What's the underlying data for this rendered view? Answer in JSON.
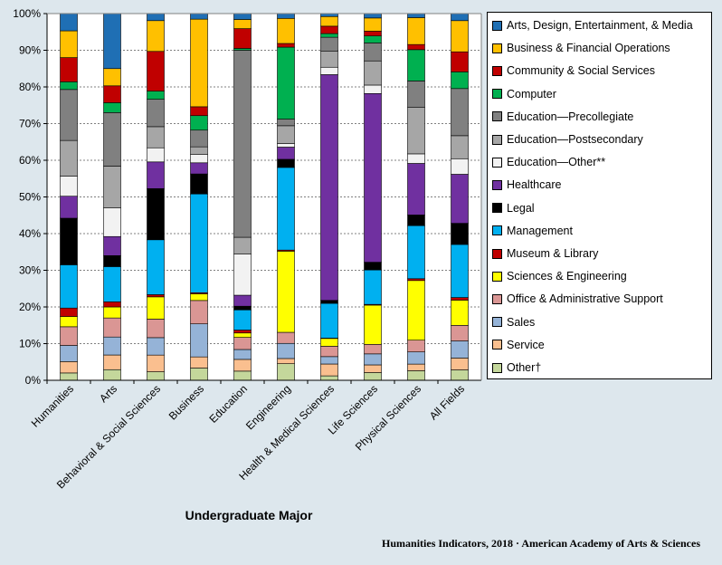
{
  "chart_data": {
    "type": "bar",
    "stacked": true,
    "percent_stacked": true,
    "xlabel": "Undergraduate Major",
    "ylabel": "",
    "ylim": [
      0,
      100
    ],
    "yticks": [
      "0%",
      "10%",
      "20%",
      "30%",
      "40%",
      "50%",
      "60%",
      "70%",
      "80%",
      "90%",
      "100%"
    ],
    "legend_position": "right",
    "categories": [
      "Humanities",
      "Arts",
      "Behavioral & Social Sciences",
      "Business",
      "Education",
      "Engineering",
      "Health & Medical Sciences",
      "Life Sciences",
      "Physical Sciences",
      "All Fields"
    ],
    "series": [
      {
        "name": "Other†",
        "color": "#c4d79b",
        "values": [
          2.0,
          2.9,
          2.3,
          3.3,
          2.5,
          4.5,
          1.2,
          2.1,
          2.6,
          2.8
        ]
      },
      {
        "name": "Service",
        "color": "#fabf8f",
        "values": [
          3.1,
          4.0,
          4.5,
          3.0,
          3.2,
          1.4,
          3.2,
          2.1,
          1.8,
          3.2
        ]
      },
      {
        "name": "Sales",
        "color": "#95b3d7",
        "values": [
          4.4,
          4.9,
          4.7,
          8.9,
          2.7,
          4.1,
          2.0,
          3.0,
          3.3,
          4.6
        ]
      },
      {
        "name": "Office & Administrative Support",
        "color": "#da9694",
        "values": [
          5.1,
          5.2,
          5.0,
          6.3,
          3.3,
          3.0,
          2.8,
          2.6,
          3.2,
          4.2
        ]
      },
      {
        "name": "Sciences & Engineering",
        "color": "#ffff00",
        "values": [
          2.8,
          3.0,
          6.0,
          1.8,
          1.2,
          22.0,
          2.1,
          10.7,
          16.2,
          6.8
        ]
      },
      {
        "name": "Museum & Library",
        "color": "#c00000",
        "values": [
          2.3,
          1.4,
          0.6,
          0.3,
          0.8,
          0.3,
          0.1,
          0.2,
          0.5,
          0.7
        ]
      },
      {
        "name": "Management",
        "color": "#00b0f0",
        "values": [
          11.8,
          9.6,
          14.8,
          26.6,
          5.5,
          22.4,
          9.4,
          9.4,
          14.4,
          14.3
        ]
      },
      {
        "name": "Legal",
        "color": "#000000",
        "values": [
          12.7,
          3.0,
          13.8,
          5.4,
          1.0,
          2.2,
          0.8,
          2.1,
          2.9,
          5.7
        ]
      },
      {
        "name": "Healthcare",
        "color": "#7030a0",
        "values": [
          6.0,
          5.2,
          7.2,
          3.0,
          3.0,
          3.3,
          61.0,
          46.0,
          14.0,
          13.2
        ]
      },
      {
        "name": "Education—Other**",
        "color": "#f2f2f2",
        "values": [
          5.5,
          7.8,
          3.8,
          2.3,
          11.2,
          1.0,
          2.0,
          2.3,
          2.6,
          4.2
        ]
      },
      {
        "name": "Education—Postsecondary",
        "color": "#a6a6a6",
        "values": [
          9.7,
          11.4,
          5.7,
          2.0,
          4.6,
          4.8,
          4.3,
          6.6,
          12.6,
          6.2
        ]
      },
      {
        "name": "Education—Precollegiate",
        "color": "#808080",
        "values": [
          13.9,
          14.6,
          7.4,
          4.5,
          51.0,
          1.8,
          3.8,
          4.9,
          7.2,
          12.7
        ]
      },
      {
        "name": "Computer",
        "color": "#00b050",
        "values": [
          2.1,
          2.7,
          2.2,
          3.9,
          0.5,
          19.5,
          1.0,
          1.9,
          8.5,
          4.5
        ]
      },
      {
        "name": "Community & Social Services",
        "color": "#c00000",
        "values": [
          6.6,
          4.6,
          10.7,
          2.4,
          5.4,
          1.0,
          2.0,
          1.3,
          1.4,
          5.4
        ]
      },
      {
        "name": "Business & Financial Operations",
        "color": "#ffc000",
        "values": [
          7.3,
          4.7,
          8.3,
          23.6,
          2.5,
          6.8,
          2.6,
          3.6,
          7.3,
          8.4
        ]
      },
      {
        "name": "Arts, Design, Entertainment, & Media",
        "color": "#1f6fb4",
        "values": [
          4.7,
          15.0,
          1.9,
          1.5,
          1.6,
          1.3,
          0.8,
          1.2,
          1.1,
          1.9
        ]
      }
    ]
  },
  "source": "Humanities  Indicators, 2018 · American Academy of Arts & Sciences"
}
